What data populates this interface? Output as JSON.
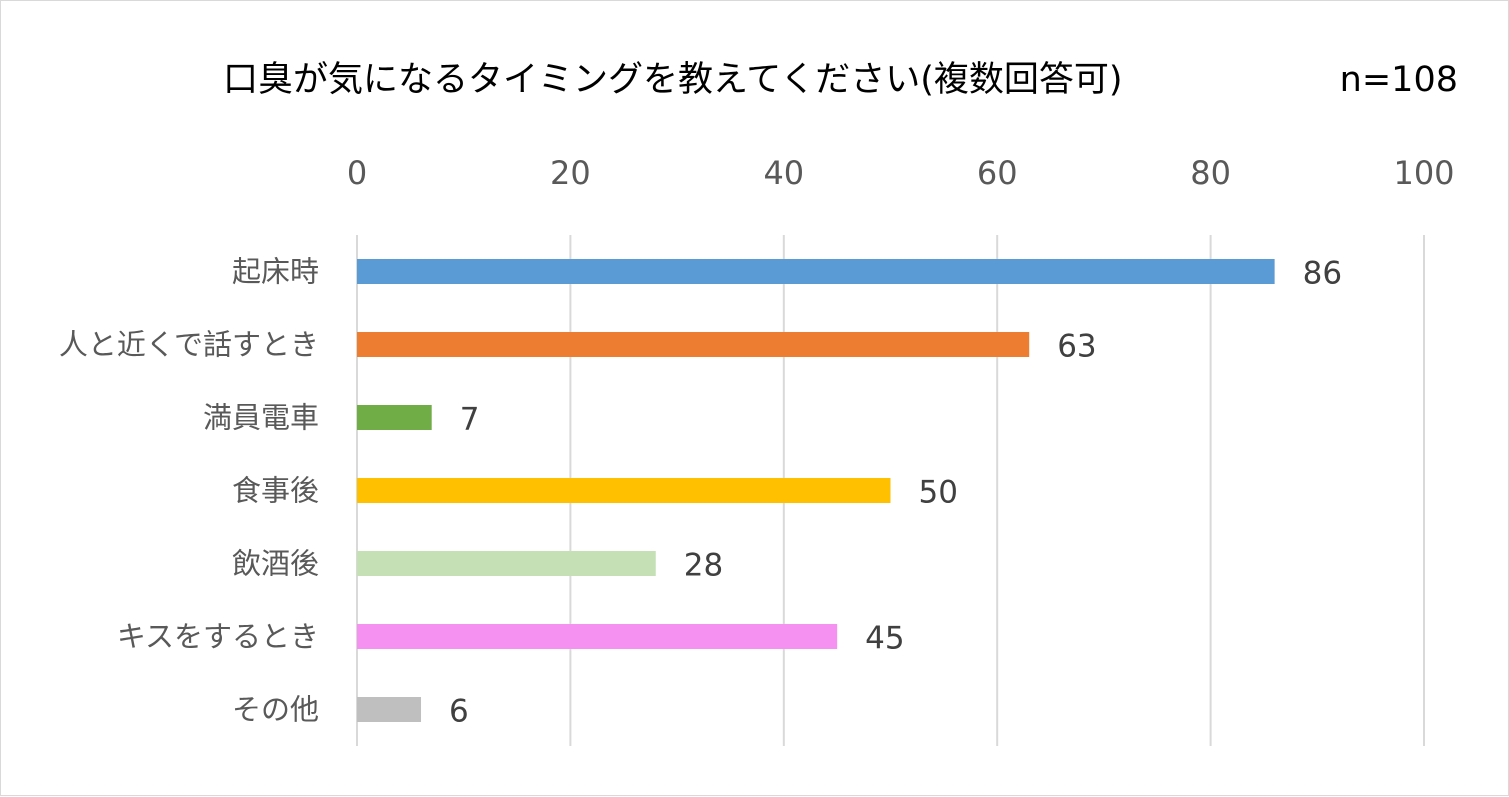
{
  "chart_data": {
    "type": "bar",
    "orientation": "horizontal",
    "title": "口臭が気になるタイミングを教えてください(複数回答可)",
    "annotation": "n=108",
    "categories": [
      "起床時",
      "人と近くで話すとき",
      "満員電車",
      "食事後",
      "飲酒後",
      "キスをするとき",
      "その他"
    ],
    "values": [
      86,
      63,
      7,
      50,
      28,
      45,
      6
    ],
    "colors": [
      "#5b9bd5",
      "#ed7d31",
      "#70ad47",
      "#ffc000",
      "#c5e0b4",
      "#f591f0",
      "#bfbfbf"
    ],
    "xlim": [
      0,
      100
    ],
    "xticks": [
      0,
      20,
      40,
      60,
      80,
      100
    ],
    "xaxis_position": "top",
    "grid": true,
    "data_labels": true,
    "legend": "none"
  }
}
